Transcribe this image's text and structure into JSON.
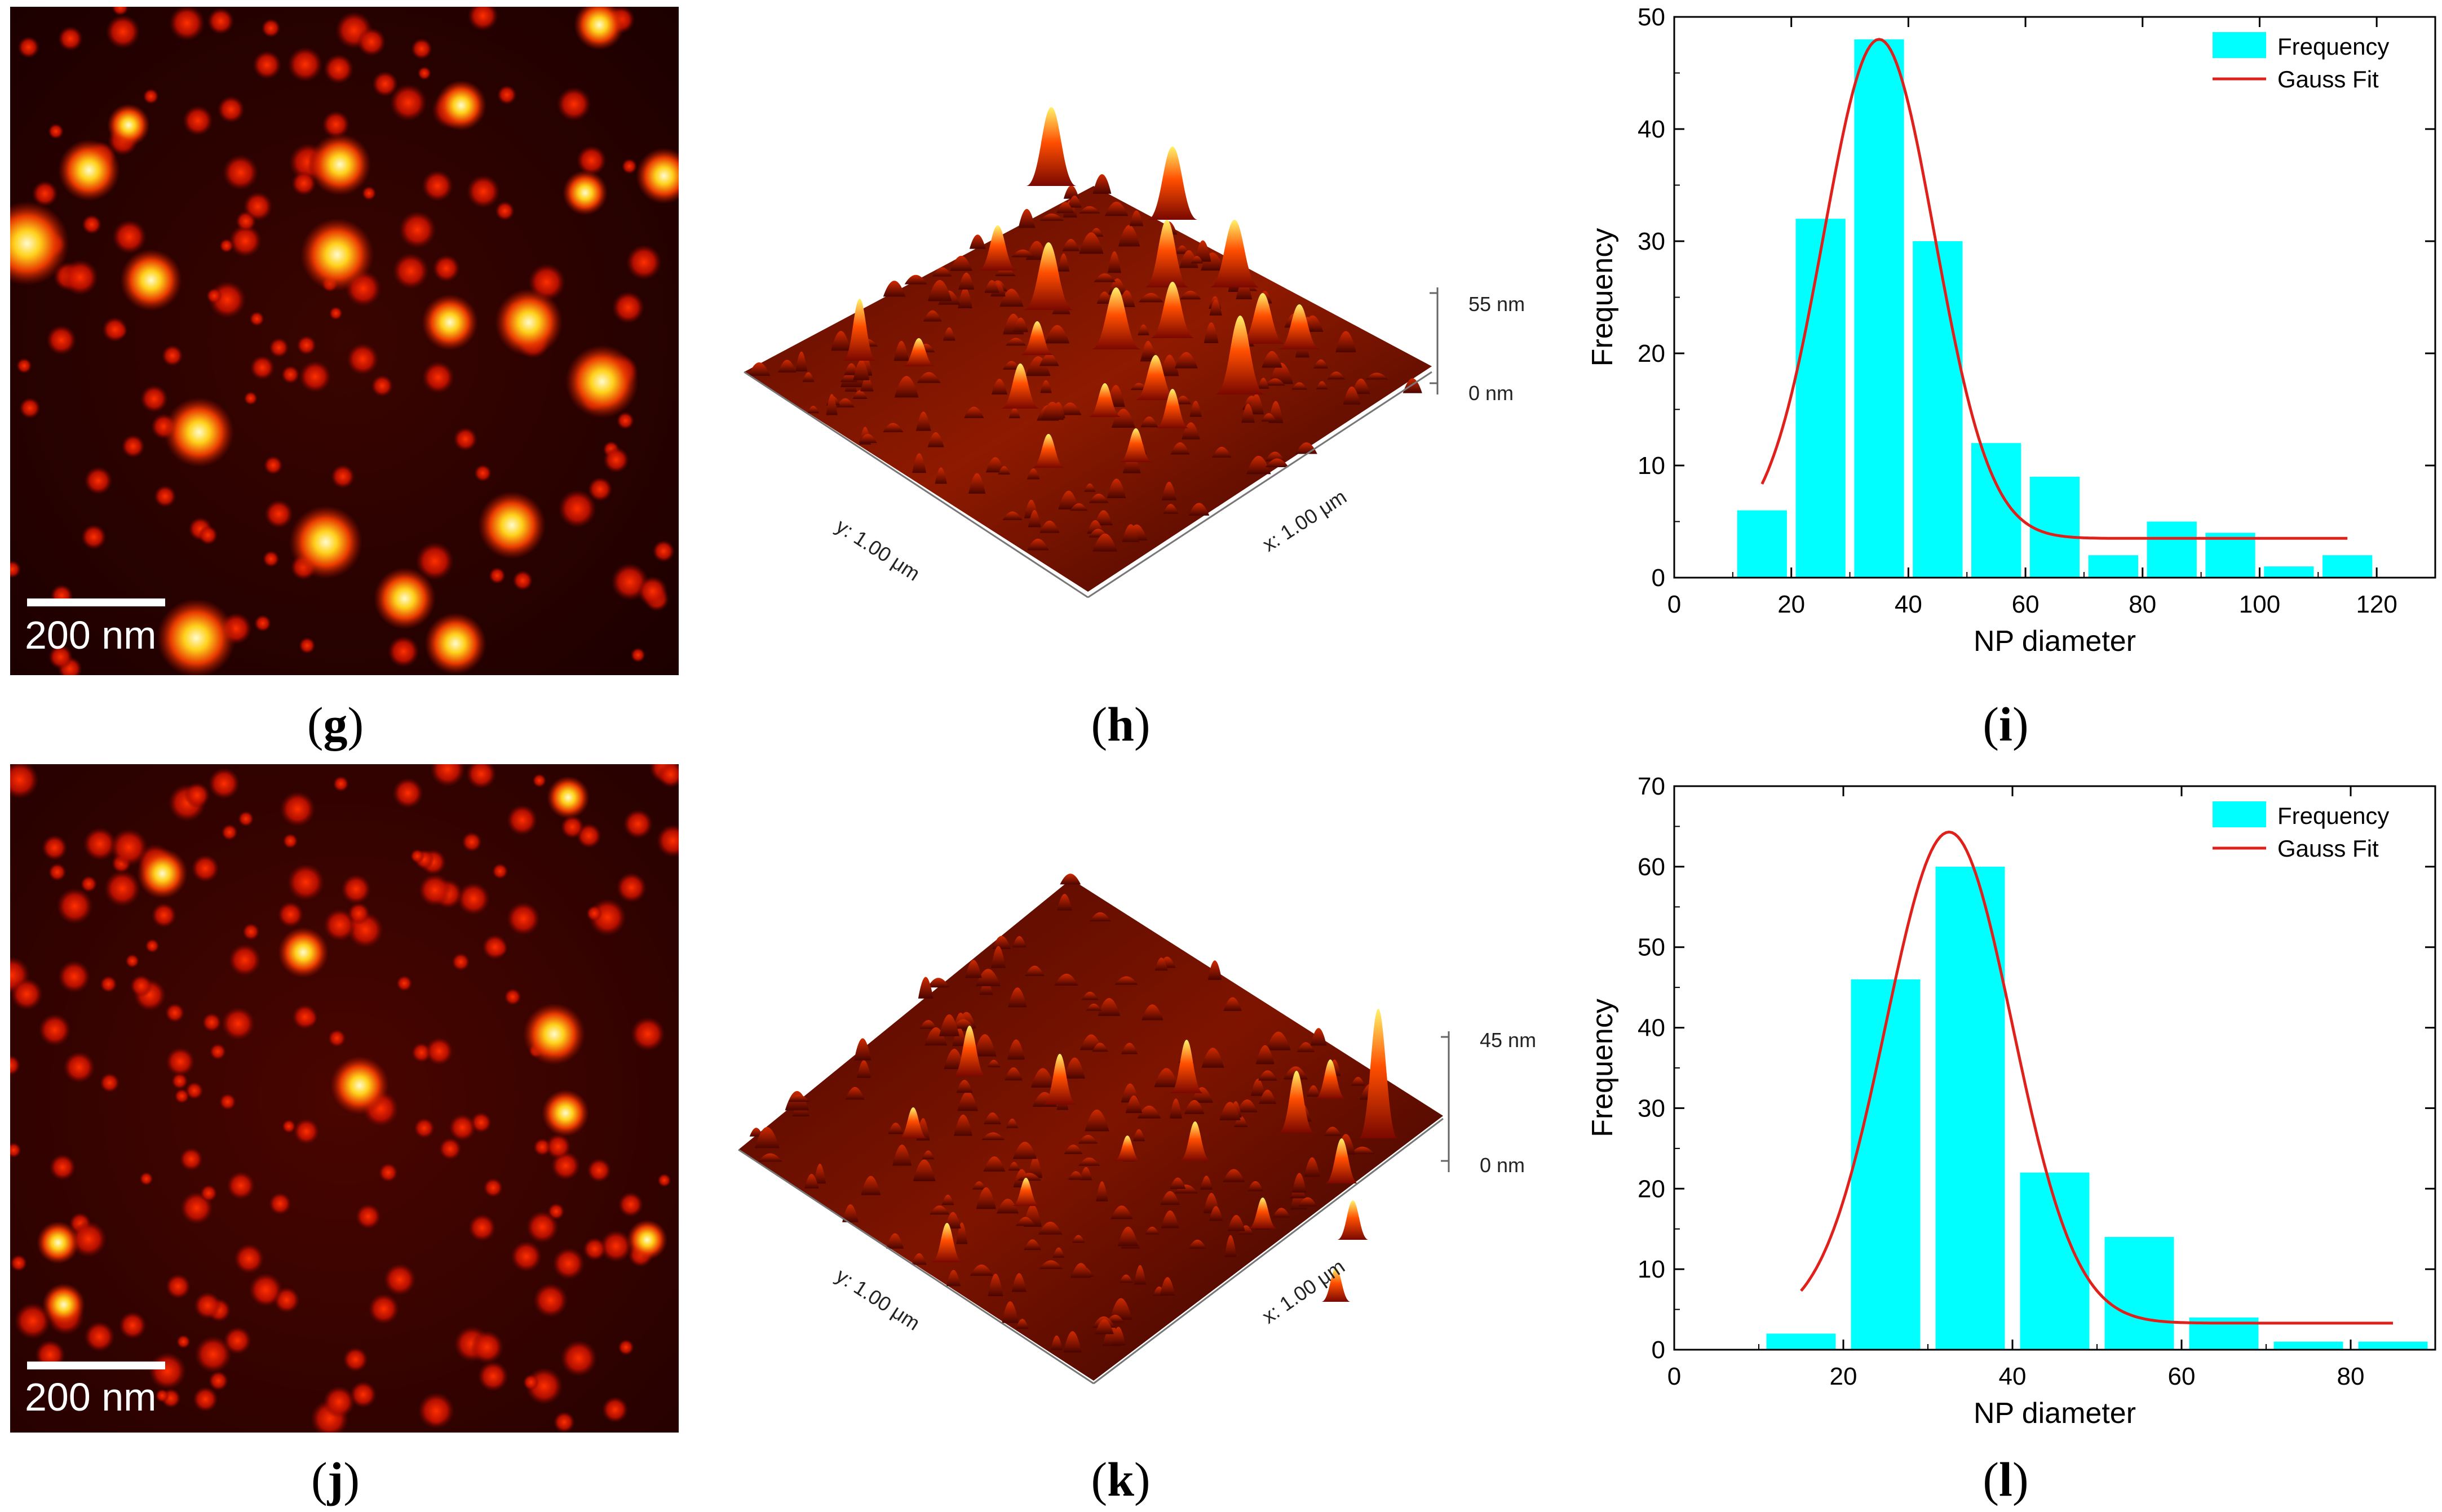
{
  "panels": {
    "g": {
      "label_open": "(",
      "label_letter": "g",
      "label_close": ")",
      "scalebar": "200 nm"
    },
    "h": {
      "label_open": "(",
      "label_letter": "h",
      "label_close": ")",
      "z_top": "55 nm",
      "z_bottom": "0 nm",
      "y_axis": "y: 1.00 μm",
      "x_axis": "x: 1.00 μm"
    },
    "i": {
      "label_open": "(",
      "label_letter": "i",
      "label_close": ")"
    },
    "j": {
      "label_open": "(",
      "label_letter": "j",
      "label_close": ")",
      "scalebar": "200 nm"
    },
    "k": {
      "label_open": "(",
      "label_letter": "k",
      "label_close": ")",
      "z_top": "45 nm",
      "z_bottom": "0 nm",
      "y_axis": "y: 1.00 μm",
      "x_axis": "x: 1.00 μm"
    },
    "l": {
      "label_open": "(",
      "label_letter": "l",
      "label_close": ")"
    }
  },
  "colors": {
    "bar": "#00FFFF",
    "fit": "#E0201B",
    "afm_dark": "#1a0000"
  },
  "chart_data": [
    {
      "id": "i",
      "type": "bar",
      "title": "",
      "xlabel": "NP diameter",
      "ylabel": "Frequency",
      "xlim": [
        0,
        130
      ],
      "ylim": [
        0,
        50
      ],
      "xticks": [
        0,
        20,
        40,
        60,
        80,
        100,
        120
      ],
      "yticks": [
        0,
        10,
        20,
        30,
        40,
        50
      ],
      "bar_width": 8.5,
      "legend": {
        "position": "top-right",
        "entries": [
          "Frequency",
          "Gauss Fit"
        ]
      },
      "series": [
        {
          "name": "Frequency",
          "kind": "bar",
          "x": [
            15,
            25,
            35,
            45,
            55,
            65,
            75,
            85,
            95,
            105,
            115
          ],
          "values": [
            6,
            32,
            48,
            30,
            12,
            9,
            2,
            5,
            4,
            1,
            2
          ]
        },
        {
          "name": "Gauss Fit",
          "kind": "line",
          "gauss": {
            "y0": 3.5,
            "A": 44.5,
            "xc": 35,
            "sigma": 9.5,
            "xmin": 15,
            "xmax": 115
          }
        }
      ]
    },
    {
      "id": "l",
      "type": "bar",
      "title": "",
      "xlabel": "NP diameter",
      "ylabel": "Frequency",
      "xlim": [
        0,
        90
      ],
      "ylim": [
        0,
        70
      ],
      "xticks": [
        0,
        20,
        40,
        60,
        80
      ],
      "yticks": [
        0,
        10,
        20,
        30,
        40,
        50,
        60,
        70
      ],
      "bar_width": 8.2,
      "legend": {
        "position": "top-right",
        "entries": [
          "Frequency",
          "Gauss Fit"
        ]
      },
      "series": [
        {
          "name": "Frequency",
          "kind": "bar",
          "x": [
            15,
            25,
            35,
            45,
            55,
            65,
            75,
            85
          ],
          "values": [
            2,
            46,
            60,
            22,
            14,
            4,
            1,
            1
          ]
        },
        {
          "name": "Gauss Fit",
          "kind": "line",
          "gauss": {
            "y0": 3.3,
            "A": 61,
            "xc": 32.5,
            "sigma": 7.5,
            "xmin": 15,
            "xmax": 85
          }
        }
      ]
    }
  ]
}
